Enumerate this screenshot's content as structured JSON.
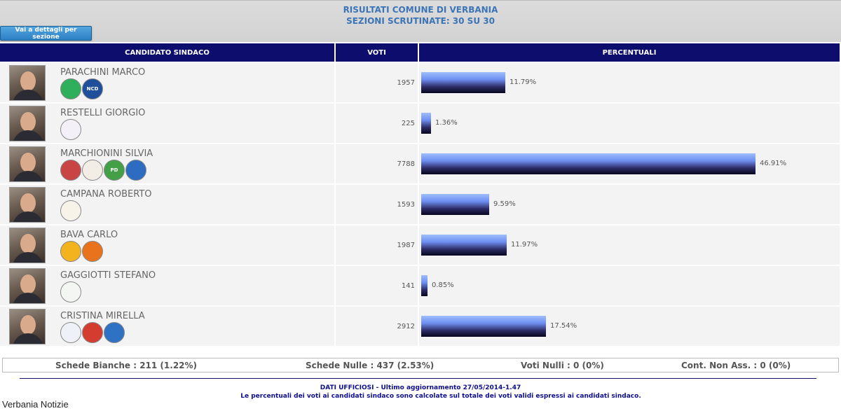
{
  "header": {
    "title": "RISULTATI COMUNE DI VERBANIA",
    "subtitle": "SEZIONI SCRUTINATE: 30 SU 30",
    "details_button": "Vai a dettagli per sezione"
  },
  "table": {
    "columns": [
      "CANDIDATO SINDACO",
      "VOTI",
      "PERCENTUALI"
    ],
    "rows": [
      {
        "name": "PARACHINI MARCO",
        "votes": "1957",
        "percent": "11.79%",
        "percent_value": 11.79,
        "logos": [
          {
            "label": "",
            "color": "#2fae5b"
          },
          {
            "label": "NCD",
            "color": "#1f4f9a"
          }
        ]
      },
      {
        "name": "RESTELLI GIORGIO",
        "votes": "225",
        "percent": "1.36%",
        "percent_value": 1.36,
        "logos": [
          {
            "label": "",
            "color": "#f3f0f8"
          }
        ]
      },
      {
        "name": "MARCHIONINI SILVIA",
        "votes": "7788",
        "percent": "46.91%",
        "percent_value": 46.91,
        "logos": [
          {
            "label": "",
            "color": "#c94444"
          },
          {
            "label": "",
            "color": "#f2eee6"
          },
          {
            "label": "PD",
            "color": "#43a047"
          },
          {
            "label": "",
            "color": "#2d6cc0"
          }
        ]
      },
      {
        "name": "CAMPANA ROBERTO",
        "votes": "1593",
        "percent": "9.59%",
        "percent_value": 9.59,
        "logos": [
          {
            "label": "",
            "color": "#f7f3e8"
          }
        ]
      },
      {
        "name": "BAVA CARLO",
        "votes": "1987",
        "percent": "11.97%",
        "percent_value": 11.97,
        "logos": [
          {
            "label": "",
            "color": "#f2b31f"
          },
          {
            "label": "",
            "color": "#e8731c"
          }
        ]
      },
      {
        "name": "GAGGIOTTI STEFANO",
        "votes": "141",
        "percent": "0.85%",
        "percent_value": 0.85,
        "logos": [
          {
            "label": "",
            "color": "#f3f6f2"
          }
        ]
      },
      {
        "name": "CRISTINA MIRELLA",
        "votes": "2912",
        "percent": "17.54%",
        "percent_value": 17.54,
        "logos": [
          {
            "label": "",
            "color": "#eef1f7"
          },
          {
            "label": "",
            "color": "#d43c2f"
          },
          {
            "label": "",
            "color": "#2f72c4"
          }
        ]
      }
    ]
  },
  "stats": {
    "bianche": "Schede Bianche : 211 (1.22%)",
    "nulle": "Schede Nulle : 437 (2.53%)",
    "voti_nulli": "Voti Nulli : 0 (0%)",
    "non_ass": "Cont. Non Ass. : 0 (0%)"
  },
  "footer": {
    "line1": "DATI UFFICIOSI - Ultimo aggiornamento 27/05/2014-1.47",
    "line2": "Le percentuali dei voti ai candidati sindaco sono calcolate sul totale dei voti validi espressi ai candidati sindaco."
  },
  "watermark": "Verbania Notizie",
  "colors": {
    "header_bg": "#d6d6d6",
    "title_blue": "#3c74b6",
    "table_head": "#0d0d6e",
    "row_bg": "#f3f3f3"
  }
}
